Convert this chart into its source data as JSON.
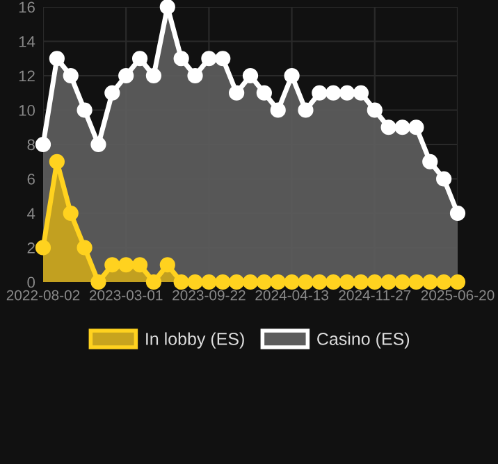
{
  "chart_data": {
    "type": "area",
    "categories": [
      "2022-08-02",
      null,
      null,
      null,
      null,
      null,
      "2023-03-01",
      null,
      null,
      null,
      null,
      null,
      "2023-09-22",
      null,
      null,
      null,
      null,
      null,
      "2024-04-13",
      null,
      null,
      null,
      null,
      null,
      "2024-11-27",
      null,
      null,
      null,
      null,
      null,
      "2025-06-20"
    ],
    "series": [
      {
        "name": "In lobby (ES)",
        "color": "#ffd21f",
        "values": [
          2,
          7,
          4,
          2,
          0,
          1,
          1,
          1,
          0,
          1,
          0,
          0,
          0,
          0,
          0,
          0,
          0,
          0,
          0,
          0,
          0,
          0,
          0,
          0,
          0,
          0,
          0,
          0,
          0,
          0,
          0
        ]
      },
      {
        "name": "Casino (ES)",
        "color": "#ffffff",
        "values": [
          8,
          13,
          12,
          10,
          8,
          11,
          12,
          13,
          12,
          16,
          13,
          12,
          13,
          13,
          11,
          12,
          11,
          10,
          12,
          10,
          11,
          11,
          11,
          11,
          10,
          9,
          9,
          9,
          7,
          6,
          4
        ]
      }
    ],
    "ylim": [
      0,
      16
    ],
    "yticks": [
      0,
      2,
      4,
      6,
      8,
      10,
      12,
      14,
      16
    ],
    "grid": true,
    "legend": "bottom",
    "marker": "circle"
  }
}
